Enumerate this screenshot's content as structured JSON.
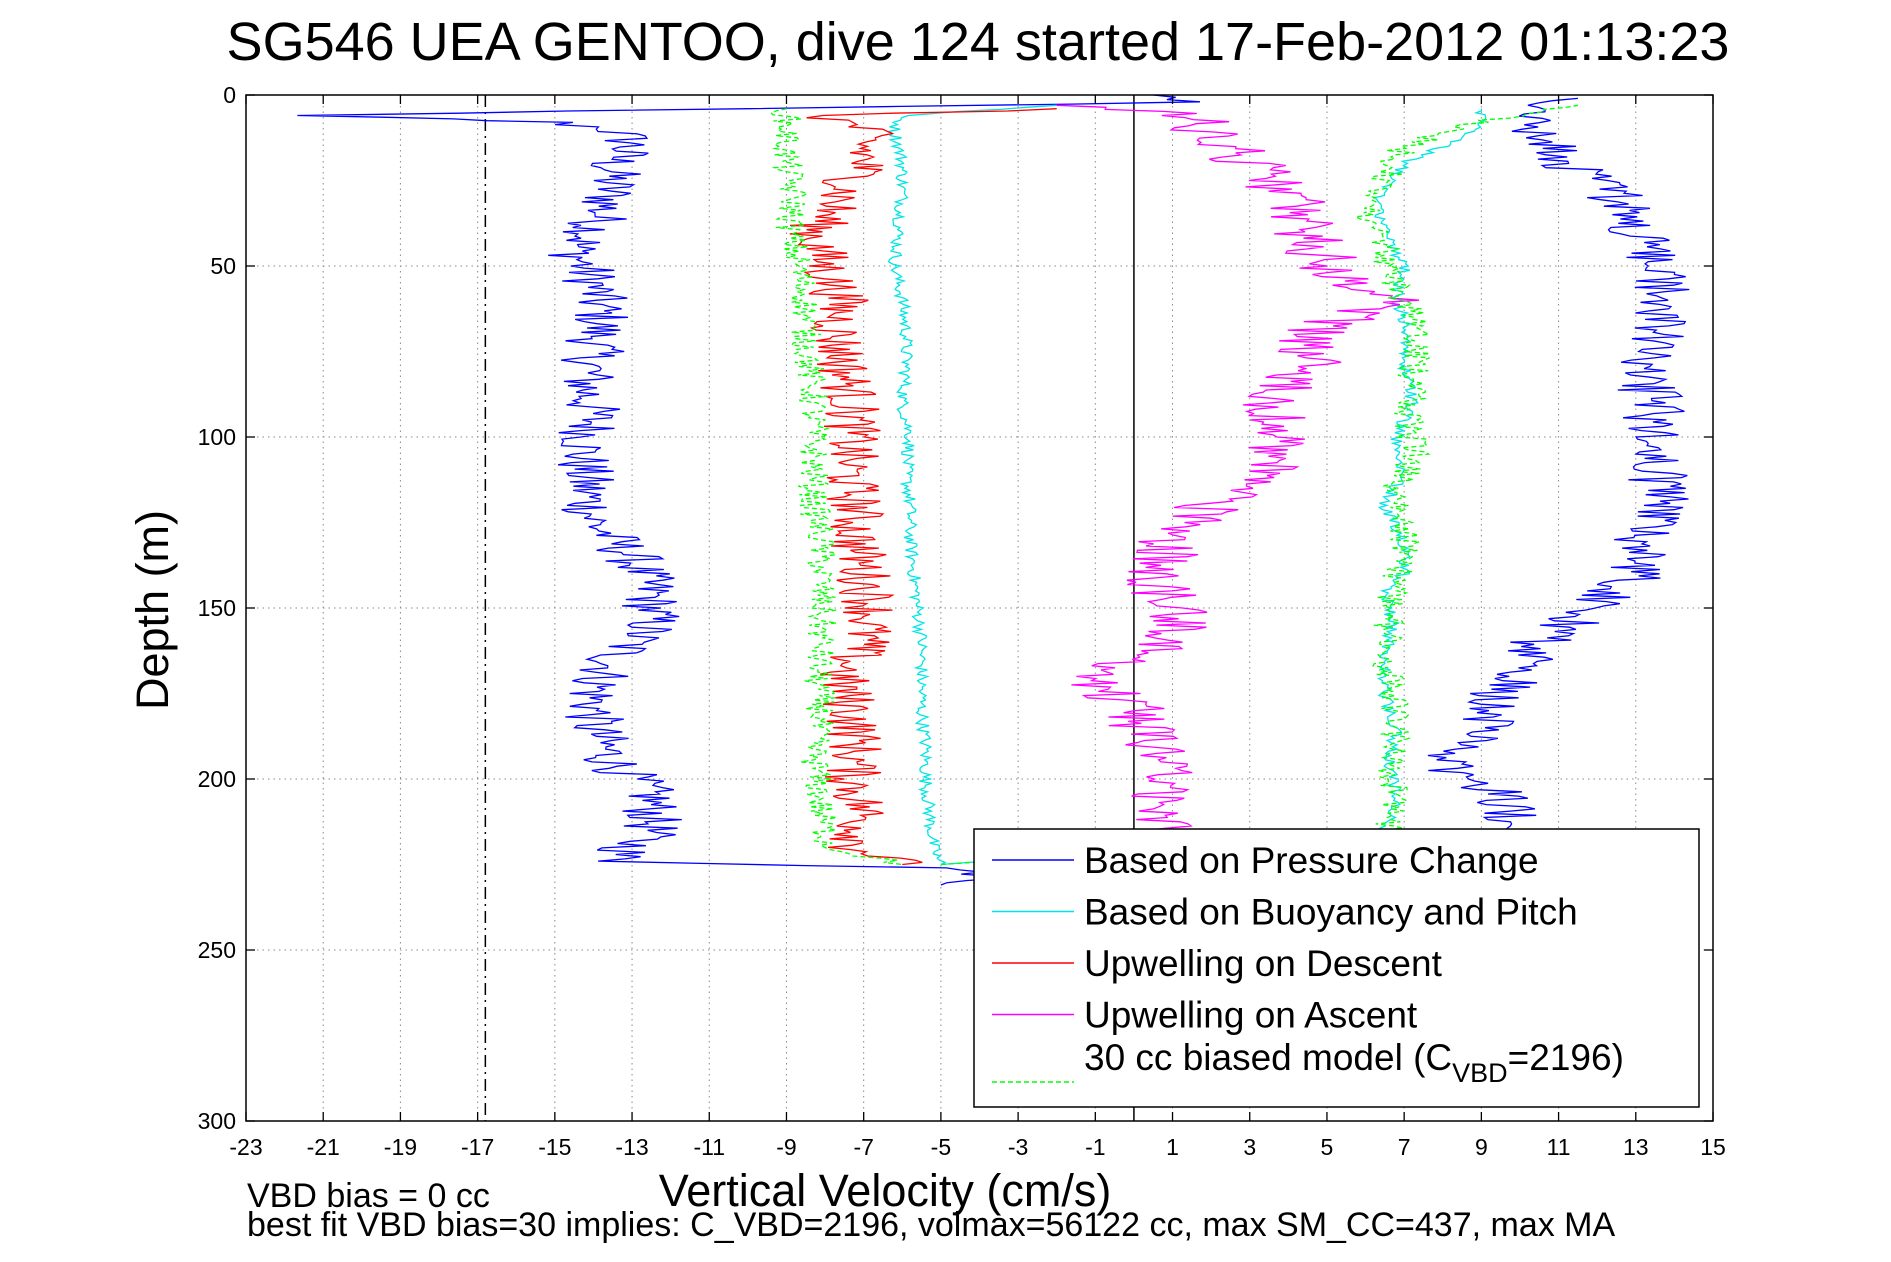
{
  "chart_data": {
    "type": "line",
    "title": "SG546 UEA GENTOO, dive 124 started 17-Feb-2012 01:13:23",
    "xlabel": "Vertical Velocity (cm/s)",
    "ylabel": "Depth (m)",
    "xlim": [
      -23,
      15
    ],
    "ylim": [
      0,
      300
    ],
    "y_reversed": true,
    "grid": true,
    "x_ticks": [
      -23,
      -21,
      -19,
      -17,
      -15,
      -13,
      -11,
      -9,
      -7,
      -5,
      -3,
      -1,
      1,
      3,
      5,
      7,
      9,
      11,
      13,
      15
    ],
    "y_ticks": [
      0,
      50,
      100,
      150,
      200,
      250,
      300
    ],
    "legend_position": "bottom-right",
    "reference_lines": [
      {
        "orientation": "vertical",
        "x": 0,
        "style": "solid",
        "color": "#000000"
      },
      {
        "orientation": "vertical",
        "x": -16.8,
        "style": "dash-dot",
        "color": "#000000"
      }
    ],
    "series": [
      {
        "name": "Based on Pressure Change",
        "color": "#0000ff",
        "dash": "solid",
        "points": [
          [
            0.5,
            0
          ],
          [
            1.5,
            2
          ],
          [
            -22,
            6
          ],
          [
            -18,
            7
          ],
          [
            -15,
            8
          ],
          [
            -13.5,
            10
          ],
          [
            -13,
            14
          ],
          [
            -13.5,
            20
          ],
          [
            -13.6,
            30
          ],
          [
            -14,
            40
          ],
          [
            -14.5,
            45
          ],
          [
            -14,
            55
          ],
          [
            -13.8,
            65
          ],
          [
            -14,
            75
          ],
          [
            -14.2,
            85
          ],
          [
            -14,
            95
          ],
          [
            -14.3,
            105
          ],
          [
            -14.2,
            115
          ],
          [
            -14,
            125
          ],
          [
            -13,
            135
          ],
          [
            -12.5,
            145
          ],
          [
            -12.5,
            155
          ],
          [
            -13.5,
            165
          ],
          [
            -14,
            175
          ],
          [
            -14,
            185
          ],
          [
            -13.5,
            195
          ],
          [
            -12.5,
            205
          ],
          [
            -12.5,
            215
          ],
          [
            -13.5,
            224
          ],
          [
            -5,
            226
          ],
          [
            -3,
            229
          ],
          [
            -5,
            231
          ]
        ],
        "points_ascent": [
          [
            -4,
            229
          ],
          [
            10,
            215
          ],
          [
            9.5,
            205
          ],
          [
            8,
            195
          ],
          [
            9,
            185
          ],
          [
            9.5,
            175
          ],
          [
            10.5,
            160
          ],
          [
            12,
            150
          ],
          [
            13,
            140
          ],
          [
            13.2,
            130
          ],
          [
            13.8,
            120
          ],
          [
            13.5,
            110
          ],
          [
            13.4,
            100
          ],
          [
            13.5,
            90
          ],
          [
            13,
            80
          ],
          [
            13.5,
            70
          ],
          [
            13.8,
            60
          ],
          [
            13.5,
            50
          ],
          [
            13,
            40
          ],
          [
            12.5,
            30
          ],
          [
            11.3,
            20
          ],
          [
            10.5,
            10
          ],
          [
            10.5,
            3
          ],
          [
            11.5,
            1
          ]
        ]
      },
      {
        "name": "Based on Buoyancy and Pitch",
        "color": "#00e5e5",
        "dash": "solid",
        "points": [
          [
            -2,
            3
          ],
          [
            -6,
            6
          ],
          [
            -6.2,
            10
          ],
          [
            -6,
            20
          ],
          [
            -6,
            30
          ],
          [
            -6.1,
            40
          ],
          [
            -6.2,
            50
          ],
          [
            -6,
            60
          ],
          [
            -5.9,
            70
          ],
          [
            -5.9,
            80
          ],
          [
            -6,
            90
          ],
          [
            -5.8,
            100
          ],
          [
            -5.9,
            110
          ],
          [
            -5.8,
            120
          ],
          [
            -5.8,
            130
          ],
          [
            -5.7,
            140
          ],
          [
            -5.6,
            150
          ],
          [
            -5.5,
            160
          ],
          [
            -5.5,
            170
          ],
          [
            -5.5,
            180
          ],
          [
            -5.4,
            190
          ],
          [
            -5.4,
            200
          ],
          [
            -5.3,
            210
          ],
          [
            -5.2,
            220
          ],
          [
            -5,
            225
          ]
        ],
        "points_ascent": [
          [
            -5,
            225
          ],
          [
            6.5,
            215
          ],
          [
            6.8,
            205
          ],
          [
            6.6,
            195
          ],
          [
            6.8,
            185
          ],
          [
            6.5,
            175
          ],
          [
            6.5,
            165
          ],
          [
            6.7,
            155
          ],
          [
            6.5,
            145
          ],
          [
            7,
            140
          ],
          [
            7,
            130
          ],
          [
            6.5,
            120
          ],
          [
            7,
            110
          ],
          [
            6.8,
            100
          ],
          [
            7.2,
            90
          ],
          [
            7,
            80
          ],
          [
            7.1,
            70
          ],
          [
            6.8,
            60
          ],
          [
            7,
            50
          ],
          [
            6.5,
            40
          ],
          [
            6.3,
            30
          ],
          [
            7,
            20
          ],
          [
            9,
            10
          ],
          [
            9,
            4
          ]
        ]
      },
      {
        "name": "Upwelling on Descent",
        "color": "#ff0000",
        "dash": "solid",
        "points": [
          [
            -2,
            4
          ],
          [
            -8,
            6
          ],
          [
            -7,
            10
          ],
          [
            -7,
            20
          ],
          [
            -7.6,
            30
          ],
          [
            -8.3,
            40
          ],
          [
            -8,
            50
          ],
          [
            -7.6,
            60
          ],
          [
            -7.7,
            70
          ],
          [
            -7.5,
            80
          ],
          [
            -7.3,
            90
          ],
          [
            -7.3,
            100
          ],
          [
            -7.4,
            110
          ],
          [
            -7.2,
            120
          ],
          [
            -7.2,
            130
          ],
          [
            -7,
            140
          ],
          [
            -6.8,
            150
          ],
          [
            -7,
            160
          ],
          [
            -7.6,
            170
          ],
          [
            -7.3,
            180
          ],
          [
            -7.2,
            190
          ],
          [
            -7.3,
            200
          ],
          [
            -7,
            210
          ],
          [
            -7.2,
            220
          ],
          [
            -6,
            225
          ]
        ]
      },
      {
        "name": "Upwelling on Ascent",
        "color": "#ff00ff",
        "dash": "solid",
        "points": [
          [
            -1,
            229
          ],
          [
            1,
            220
          ],
          [
            0.5,
            210
          ],
          [
            1,
            200
          ],
          [
            0.5,
            190
          ],
          [
            0,
            180
          ],
          [
            -1,
            170
          ],
          [
            1,
            160
          ],
          [
            1,
            150
          ],
          [
            0.5,
            140
          ],
          [
            1,
            130
          ],
          [
            2,
            120
          ],
          [
            3.5,
            110
          ],
          [
            4,
            100
          ],
          [
            3.5,
            90
          ],
          [
            4.5,
            80
          ],
          [
            4.5,
            70
          ],
          [
            6.5,
            60
          ],
          [
            5,
            50
          ],
          [
            4.5,
            40
          ],
          [
            4,
            30
          ],
          [
            3,
            20
          ],
          [
            2,
            12
          ],
          [
            1.5,
            6
          ],
          [
            -2,
            3
          ]
        ]
      },
      {
        "name": "30 cc biased model (C_VBD=2196)",
        "legend_main": "30 cc biased model (C",
        "legend_sub": "VBD",
        "legend_tail": "=2196)",
        "color": "#00ff00",
        "dash": "dashed",
        "points": [
          [
            -9,
            4
          ],
          [
            -9,
            10
          ],
          [
            -9,
            20
          ],
          [
            -8.8,
            30
          ],
          [
            -8.9,
            40
          ],
          [
            -8.7,
            50
          ],
          [
            -8.5,
            60
          ],
          [
            -8.5,
            70
          ],
          [
            -8.4,
            80
          ],
          [
            -8.3,
            90
          ],
          [
            -8.3,
            100
          ],
          [
            -8.3,
            110
          ],
          [
            -8.3,
            120
          ],
          [
            -8.1,
            130
          ],
          [
            -8.1,
            140
          ],
          [
            -8.1,
            150
          ],
          [
            -8.1,
            160
          ],
          [
            -8.2,
            170
          ],
          [
            -8.1,
            180
          ],
          [
            -8.3,
            190
          ],
          [
            -8.2,
            200
          ],
          [
            -8.1,
            210
          ],
          [
            -7.9,
            220
          ],
          [
            -6,
            225
          ]
        ],
        "points_ascent": [
          [
            -5,
            225
          ],
          [
            6.6,
            215
          ],
          [
            6.8,
            205
          ],
          [
            6.6,
            195
          ],
          [
            6.8,
            185
          ],
          [
            6.7,
            175
          ],
          [
            6.5,
            165
          ],
          [
            6.6,
            155
          ],
          [
            6.7,
            145
          ],
          [
            7,
            135
          ],
          [
            7,
            125
          ],
          [
            6.8,
            115
          ],
          [
            7.3,
            105
          ],
          [
            7.1,
            95
          ],
          [
            7.2,
            85
          ],
          [
            7.3,
            75
          ],
          [
            7.2,
            65
          ],
          [
            6.7,
            55
          ],
          [
            6.5,
            45
          ],
          [
            6,
            35
          ],
          [
            6.5,
            25
          ],
          [
            7,
            15
          ],
          [
            9,
            8
          ],
          [
            11.5,
            3
          ]
        ]
      }
    ]
  },
  "footer": {
    "line1": "VBD bias = 0 cc",
    "line2": "best fit VBD bias=30 implies: C_VBD=2196, volmax=56122 cc, max SM_CC=437, max MA"
  }
}
